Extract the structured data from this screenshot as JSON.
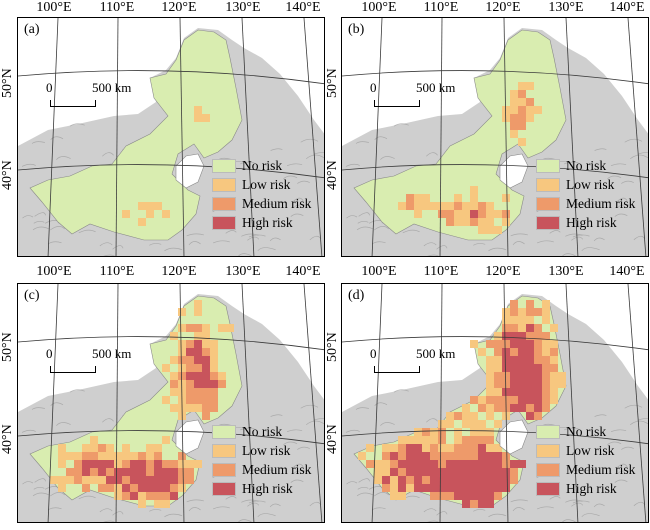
{
  "longitude_labels": [
    "100°E",
    "110°E",
    "120°E",
    "130°E",
    "140°E"
  ],
  "latitude_labels": [
    "50°N",
    "40°N"
  ],
  "scale_bar": {
    "start": "0",
    "end": "500 km"
  },
  "legend": [
    {
      "label": "No risk",
      "color": "#d9edb0"
    },
    {
      "label": "Low risk",
      "color": "#f7c77f"
    },
    {
      "label": "Medium risk",
      "color": "#ee9a6a"
    },
    {
      "label": "High risk",
      "color": "#c8545c"
    }
  ],
  "colors": {
    "terrain": "#cfcfcf",
    "terrain_ridge": "#9a9a9a",
    "water": "#ffffff",
    "graticule": "#3a3a3a"
  },
  "panels": [
    {
      "label": "(a)",
      "risk_level": "low"
    },
    {
      "label": "(b)",
      "risk_level": "low-medium"
    },
    {
      "label": "(c)",
      "risk_level": "medium-high"
    },
    {
      "label": "(d)",
      "risk_level": "high"
    }
  ]
}
